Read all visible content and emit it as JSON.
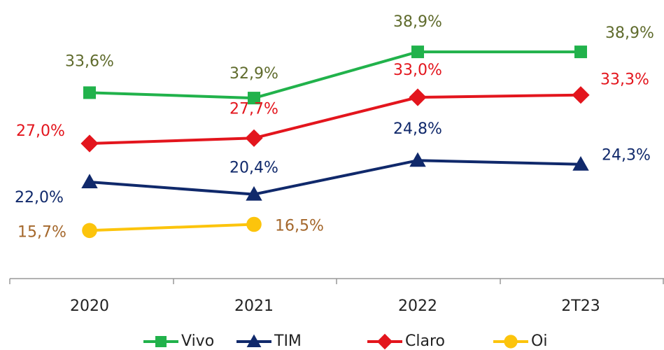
{
  "chart_data": {
    "type": "line",
    "categories": [
      "2020",
      "2021",
      "2022",
      "2T23"
    ],
    "series": [
      {
        "name": "Vivo",
        "color": "#21b24b",
        "label_color": "#5f6b2c",
        "marker": "square",
        "values": [
          33.6,
          32.9,
          38.9,
          38.9
        ],
        "value_labels": [
          "33,6%",
          "32,9%",
          "38,9%",
          "38,9%"
        ]
      },
      {
        "name": "TIM",
        "color": "#10296b",
        "label_color": "#10296b",
        "marker": "triangle",
        "values": [
          22.0,
          20.4,
          24.8,
          24.3
        ],
        "value_labels": [
          "22,0%",
          "20,4%",
          "24,8%",
          "24,3%"
        ]
      },
      {
        "name": "Claro",
        "color": "#e3151d",
        "label_color": "#e3151d",
        "marker": "diamond",
        "values": [
          27.0,
          27.7,
          33.0,
          33.3
        ],
        "value_labels": [
          "27,0%",
          "27,7%",
          "33,0%",
          "33,3%"
        ]
      },
      {
        "name": "Oi",
        "color": "#fcc40c",
        "label_color": "#a4672b",
        "marker": "circle",
        "values": [
          15.7,
          16.5,
          null,
          null
        ],
        "value_labels": [
          "15,7%",
          "16,5%",
          null,
          null
        ]
      }
    ],
    "legend": "bottom"
  }
}
